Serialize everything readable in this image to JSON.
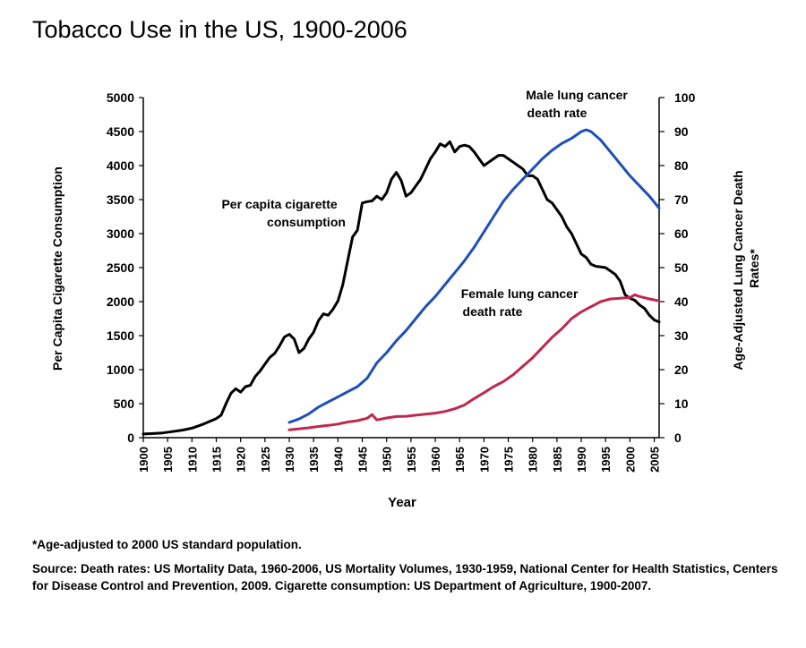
{
  "title": "Tobacco Use in the US, 1900-2006",
  "footnote": "*Age-adjusted to 2000 US standard population.",
  "source": "Source: Death rates: US Mortality Data, 1960-2006, US Mortality Volumes, 1930-1959, National Center for Health Statistics, Centers for Disease Control and Prevention, 2009. Cigarette consumption: US Department of Agriculture, 1900-2007.",
  "chart_data": {
    "type": "line",
    "xlabel": "Year",
    "ylabel": "Per Capita Cigarette Consumption",
    "y2label": [
      "Age-Adjusted Lung Cancer Death",
      "Rates*"
    ],
    "xlim": [
      1900,
      2006
    ],
    "ylim": [
      0,
      5000
    ],
    "y2lim": [
      0,
      100
    ],
    "x_ticks": [
      "1900",
      "1905",
      "1910",
      "1915",
      "1920",
      "1925",
      "1930",
      "1935",
      "1940",
      "1945",
      "1950",
      "1955",
      "1960",
      "1965",
      "1970",
      "1975",
      "1980",
      "1985",
      "1990",
      "1995",
      "2000",
      "2005"
    ],
    "y_ticks": [
      "0",
      "500",
      "1000",
      "1500",
      "2000",
      "2500",
      "3000",
      "3500",
      "4000",
      "4500",
      "5000"
    ],
    "y2_ticks": [
      "0",
      "10",
      "20",
      "30",
      "40",
      "50",
      "60",
      "70",
      "80",
      "90",
      "100"
    ],
    "grid": false,
    "series": [
      {
        "name": "Per capita cigarette consumption",
        "label_lines": [
          "Per capita cigarette",
          "consumption"
        ],
        "axis": "left",
        "color": "#000000",
        "x": [
          1900,
          1902,
          1904,
          1906,
          1908,
          1910,
          1912,
          1914,
          1915,
          1916,
          1917,
          1918,
          1919,
          1920,
          1921,
          1922,
          1923,
          1924,
          1925,
          1926,
          1927,
          1928,
          1929,
          1930,
          1931,
          1932,
          1933,
          1934,
          1935,
          1936,
          1937,
          1938,
          1939,
          1940,
          1941,
          1942,
          1943,
          1944,
          1945,
          1946,
          1947,
          1948,
          1949,
          1950,
          1951,
          1952,
          1953,
          1954,
          1955,
          1956,
          1957,
          1958,
          1959,
          1960,
          1961,
          1962,
          1963,
          1964,
          1965,
          1966,
          1967,
          1968,
          1969,
          1970,
          1971,
          1972,
          1973,
          1974,
          1975,
          1976,
          1977,
          1978,
          1979,
          1980,
          1981,
          1982,
          1983,
          1984,
          1985,
          1986,
          1987,
          1988,
          1989,
          1990,
          1991,
          1992,
          1993,
          1994,
          1995,
          1996,
          1997,
          1998,
          1999,
          2000,
          2001,
          2002,
          2003,
          2004,
          2005,
          2006
        ],
        "values": [
          54,
          60,
          70,
          90,
          110,
          140,
          190,
          250,
          280,
          330,
          500,
          650,
          720,
          670,
          750,
          770,
          900,
          980,
          1080,
          1180,
          1240,
          1350,
          1480,
          1520,
          1450,
          1250,
          1310,
          1450,
          1550,
          1720,
          1820,
          1800,
          1890,
          2010,
          2250,
          2600,
          2950,
          3050,
          3450,
          3470,
          3480,
          3550,
          3500,
          3600,
          3800,
          3900,
          3780,
          3550,
          3600,
          3700,
          3800,
          3950,
          4100,
          4200,
          4320,
          4280,
          4350,
          4200,
          4280,
          4300,
          4280,
          4200,
          4100,
          4000,
          4050,
          4100,
          4150,
          4150,
          4100,
          4050,
          4000,
          3950,
          3850,
          3850,
          3800,
          3650,
          3500,
          3450,
          3350,
          3250,
          3100,
          3000,
          2850,
          2700,
          2650,
          2550,
          2520,
          2510,
          2500,
          2450,
          2400,
          2300,
          2100,
          2050,
          2020,
          1950,
          1900,
          1800,
          1730,
          1700
        ]
      },
      {
        "name": "Male lung cancer death rate",
        "label_lines": [
          "Male lung cancer",
          "death rate"
        ],
        "axis": "right",
        "color": "#1f4fb8",
        "x": [
          1930,
          1932,
          1934,
          1936,
          1938,
          1940,
          1942,
          1944,
          1946,
          1948,
          1950,
          1952,
          1954,
          1956,
          1958,
          1960,
          1962,
          1964,
          1966,
          1968,
          1970,
          1972,
          1974,
          1976,
          1978,
          1980,
          1982,
          1984,
          1986,
          1988,
          1990,
          1991,
          1992,
          1994,
          1996,
          1998,
          2000,
          2002,
          2004,
          2006
        ],
        "values": [
          4.5,
          5.5,
          7,
          9,
          10.5,
          12,
          13.5,
          15,
          17.5,
          22,
          25,
          28.5,
          31.5,
          35,
          38.5,
          41.5,
          45,
          48.5,
          52,
          56,
          60.5,
          65,
          69.5,
          73,
          76,
          79,
          82,
          84.5,
          86.5,
          88,
          90,
          90.5,
          90,
          87.5,
          84,
          80.5,
          77,
          74,
          71,
          67.5
        ]
      },
      {
        "name": "Female lung cancer death rate",
        "label_lines": [
          "Female lung cancer",
          "death rate"
        ],
        "axis": "right",
        "color": "#c0284e",
        "x": [
          1930,
          1932,
          1934,
          1936,
          1938,
          1940,
          1942,
          1944,
          1946,
          1947,
          1948,
          1950,
          1952,
          1954,
          1956,
          1958,
          1960,
          1962,
          1964,
          1966,
          1968,
          1970,
          1972,
          1974,
          1976,
          1978,
          1980,
          1982,
          1984,
          1986,
          1988,
          1990,
          1992,
          1994,
          1996,
          1998,
          2000,
          2001,
          2002,
          2004,
          2006
        ],
        "values": [
          2.3,
          2.6,
          2.9,
          3.3,
          3.6,
          4,
          4.6,
          5,
          5.7,
          6.8,
          5.2,
          5.8,
          6.2,
          6.3,
          6.6,
          6.9,
          7.2,
          7.7,
          8.5,
          9.6,
          11.5,
          13.2,
          15,
          16.5,
          18.5,
          21,
          23.5,
          26.5,
          29.5,
          32,
          35,
          37,
          38.5,
          40,
          40.8,
          41,
          41.2,
          42,
          41.5,
          40.8,
          40.2
        ]
      }
    ]
  }
}
